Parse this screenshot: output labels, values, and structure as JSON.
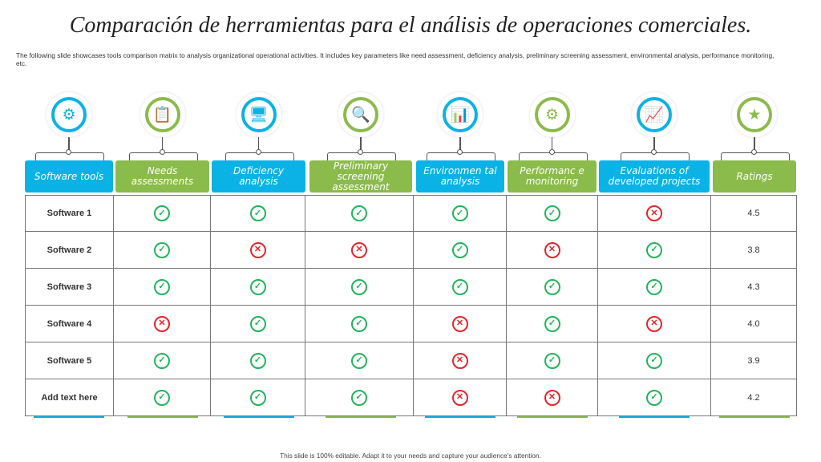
{
  "title": "Comparación de herramientas para el análisis de operaciones comerciales.",
  "description": "The following slide showcases tools comparison matrix to analysis organizational operational activities. It includes key parameters like need assessment, deficiency analysis, preliminary screening assessment, environmental analysis, performance monitoring, etc.",
  "footer": "This slide is 100% editable. Adapt it to your needs and capture your audience's attention.",
  "colors": {
    "blue": "#0bb2e6",
    "green": "#8bbb4b",
    "check": "#22b45a",
    "cross": "#e8232d"
  },
  "columns": [
    {
      "label": "Software tools",
      "icon": "software-network-icon",
      "glyph": "⚙",
      "color": "blue"
    },
    {
      "label": "Needs assessments",
      "icon": "clipboard-check-icon",
      "glyph": "📋",
      "color": "green"
    },
    {
      "label": "Deficiency analysis",
      "icon": "monitor-document-icon",
      "glyph": "🖥",
      "color": "blue"
    },
    {
      "label": "Preliminary screening assessment",
      "icon": "clipboard-magnifier-icon",
      "glyph": "🔍",
      "color": "green"
    },
    {
      "label": "Environmen tal analysis",
      "icon": "report-chart-icon",
      "glyph": "📊",
      "color": "blue"
    },
    {
      "label": "Performanc e monitoring",
      "icon": "performance-gear-icon",
      "glyph": "⚙",
      "color": "green"
    },
    {
      "label": "Evaluations of developed projects",
      "icon": "project-report-icon",
      "glyph": "📈",
      "color": "blue"
    },
    {
      "label": "Ratings",
      "icon": "star-audience-icon",
      "glyph": "★",
      "color": "green"
    }
  ],
  "rows": [
    {
      "name": "Software 1",
      "values": [
        "check",
        "check",
        "check",
        "check",
        "check",
        "cross"
      ],
      "rating": "4.5"
    },
    {
      "name": "Software 2",
      "values": [
        "check",
        "cross",
        "cross",
        "check",
        "cross",
        "check"
      ],
      "rating": "3.8"
    },
    {
      "name": "Software 3",
      "values": [
        "check",
        "check",
        "check",
        "check",
        "check",
        "check"
      ],
      "rating": "4.3"
    },
    {
      "name": "Software 4",
      "values": [
        "cross",
        "check",
        "check",
        "cross",
        "check",
        "cross"
      ],
      "rating": "4.0"
    },
    {
      "name": "Software 5",
      "values": [
        "check",
        "check",
        "check",
        "cross",
        "check",
        "check"
      ],
      "rating": "3.9"
    },
    {
      "name": "Add text here",
      "values": [
        "check",
        "check",
        "check",
        "cross",
        "cross",
        "check"
      ],
      "rating": "4.2"
    }
  ]
}
